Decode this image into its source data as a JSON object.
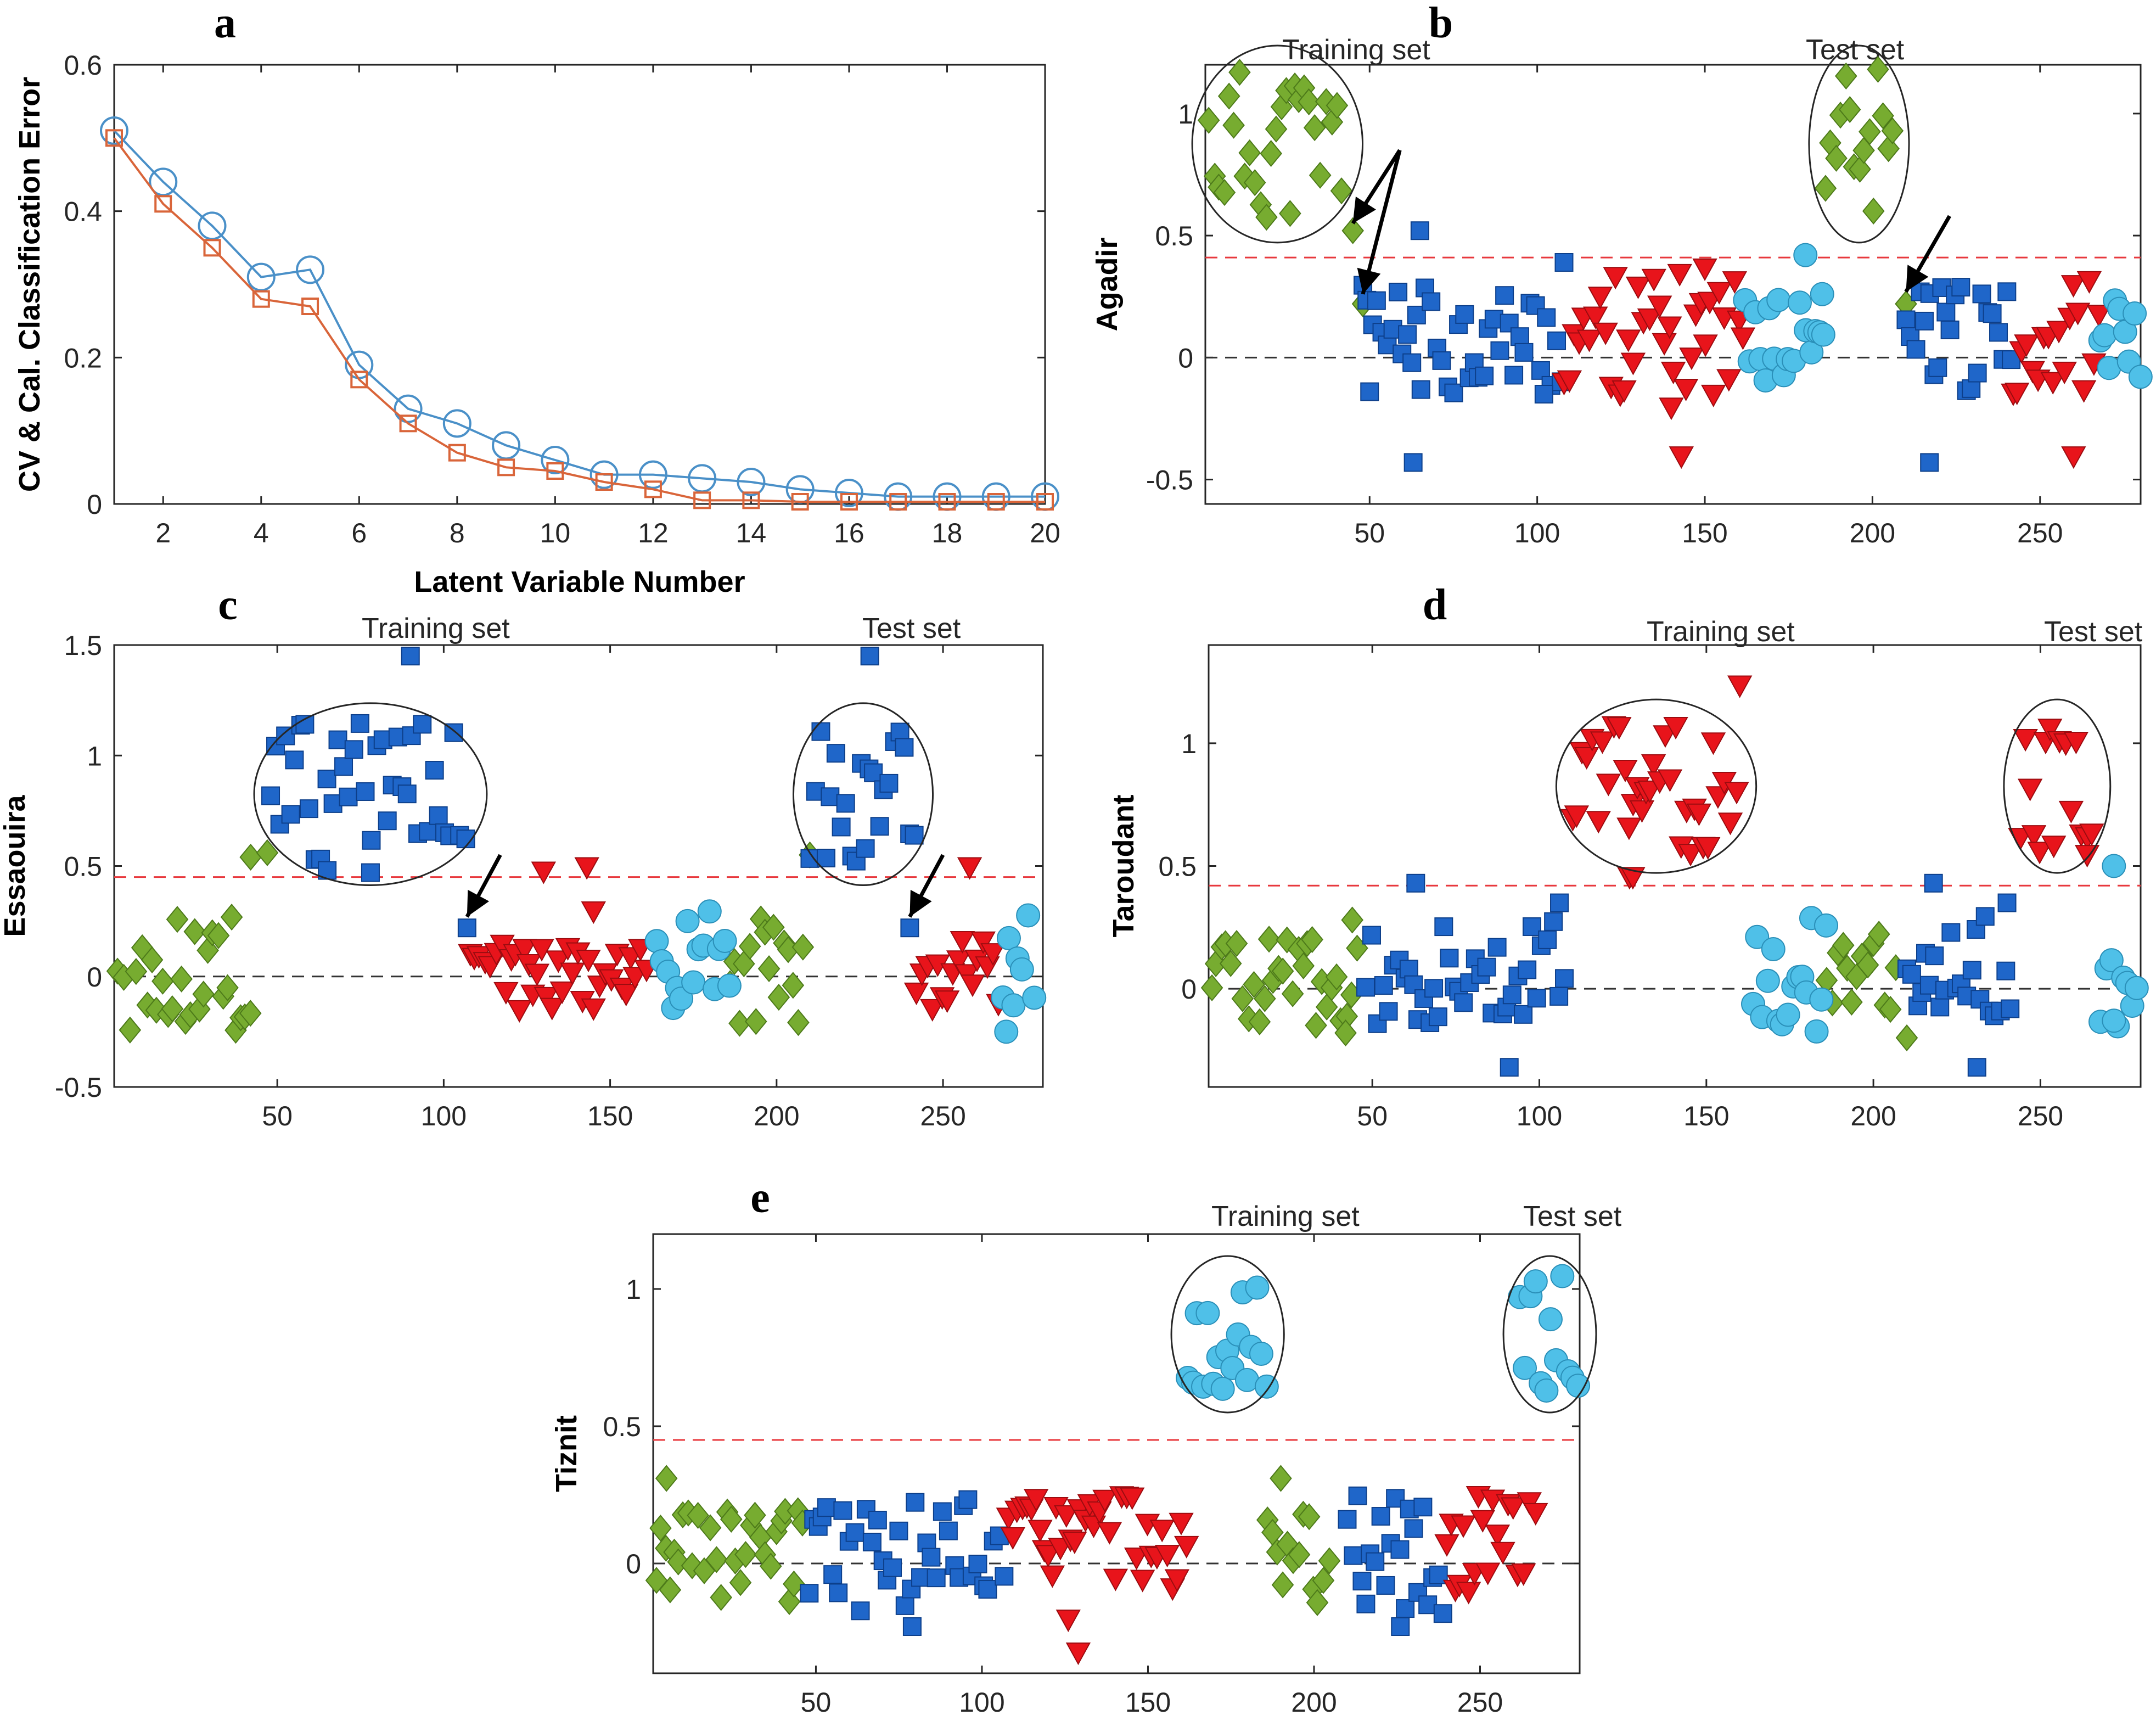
{
  "colors": {
    "agadir": "#77AC30",
    "essaouira": "#1F66C9",
    "taroudant": "#E8141B",
    "tiznit": "#4FC0E8",
    "cv": "#4A90C8",
    "cal": "#D9653A",
    "threshold": "#E8383D",
    "zero": "#333333"
  },
  "chart_data": [
    {
      "id": "a",
      "type": "line",
      "panel_letter": "a",
      "xlabel": "Latent Variable Number",
      "ylabel": "CV & Cal. Classification Error",
      "xlim": [
        1,
        20
      ],
      "ylim": [
        0,
        0.6
      ],
      "xticks": [
        2,
        4,
        6,
        8,
        10,
        12,
        14,
        16,
        18,
        20
      ],
      "xtick_labels": [
        "2",
        "4",
        "6",
        "8",
        "10",
        "12",
        "14",
        "16",
        "18",
        "20"
      ],
      "yticks": [
        0,
        0.2,
        0.4,
        0.6
      ],
      "ytick_labels": [
        "0",
        "0.2",
        "0.4",
        "0.6"
      ],
      "x": [
        1,
        2,
        3,
        4,
        5,
        6,
        7,
        8,
        9,
        10,
        11,
        12,
        13,
        14,
        15,
        16,
        17,
        18,
        19,
        20
      ],
      "series": [
        {
          "name": "CV",
          "color_key": "cv",
          "marker": "circle",
          "values": [
            0.51,
            0.44,
            0.38,
            0.31,
            0.32,
            0.19,
            0.13,
            0.11,
            0.08,
            0.06,
            0.04,
            0.04,
            0.035,
            0.03,
            0.02,
            0.015,
            0.01,
            0.01,
            0.01,
            0.01
          ]
        },
        {
          "name": "Cal",
          "color_key": "cal",
          "marker": "square",
          "values": [
            0.5,
            0.41,
            0.35,
            0.28,
            0.27,
            0.17,
            0.11,
            0.07,
            0.05,
            0.045,
            0.03,
            0.02,
            0.005,
            0.005,
            0.003,
            0.003,
            0.003,
            0.003,
            0.003,
            0.003
          ]
        }
      ]
    },
    {
      "id": "b",
      "type": "scatter",
      "panel_letter": "b",
      "ylabel": "Agadir",
      "xlim": [
        1,
        280
      ],
      "ylim": [
        -0.6,
        1.2
      ],
      "xticks": [
        50,
        100,
        150,
        200,
        250
      ],
      "xtick_labels": [
        "50",
        "100",
        "150",
        "200",
        "250"
      ],
      "yticks": [
        -0.5,
        0,
        0.5,
        1
      ],
      "ytick_labels": [
        "-0.5",
        "0",
        "0.5",
        "1"
      ],
      "threshold": 0.41,
      "annotations": [
        "Training set",
        "Test set"
      ],
      "groups": [
        {
          "name": "Agadir",
          "color_key": "agadir",
          "marker": "diamond",
          "ranges": [
            [
              2,
              43
            ],
            [
              186,
              206
            ]
          ],
          "spread": [
            0.55,
            1.2
          ],
          "extras": [
            [
              45,
              0.52
            ],
            [
              48,
              0.22
            ],
            [
              210,
              0.22
            ]
          ]
        },
        {
          "name": "Essaouira",
          "color_key": "essaouira",
          "marker": "square",
          "ranges": [
            [
              48,
              108
            ],
            [
              210,
              242
            ]
          ],
          "spread": [
            -0.15,
            0.3
          ],
          "extras": [
            [
              50,
              -0.14
            ],
            [
              63,
              -0.43
            ],
            [
              65,
              0.52
            ],
            [
              217,
              -0.43
            ],
            [
              102,
              -0.15
            ],
            [
              108,
              0.39
            ]
          ]
        },
        {
          "name": "Taroudant",
          "color_key": "taroudant",
          "marker": "triangle",
          "ranges": [
            [
              108,
              162
            ],
            [
              242,
              268
            ]
          ],
          "spread": [
            -0.15,
            0.35
          ],
          "extras": [
            [
              143,
              -0.4
            ],
            [
              140,
              -0.2
            ],
            [
              150,
              0.37
            ],
            [
              260,
              -0.4
            ]
          ]
        },
        {
          "name": "Tiznit",
          "color_key": "tiznit",
          "marker": "circle",
          "ranges": [
            [
              162,
              186
            ],
            [
              268,
              280
            ]
          ],
          "spread": [
            -0.12,
            0.25
          ],
          "extras": [
            [
              180,
              0.42
            ],
            [
              185,
              0.26
            ]
          ]
        }
      ]
    },
    {
      "id": "c",
      "type": "scatter",
      "panel_letter": "c",
      "ylabel": "Essaouira",
      "xlim": [
        1,
        280
      ],
      "ylim": [
        -0.5,
        1.5
      ],
      "xticks": [
        50,
        100,
        150,
        200,
        250
      ],
      "xtick_labels": [
        "50",
        "100",
        "150",
        "200",
        "250"
      ],
      "yticks": [
        -0.5,
        0,
        0.5,
        1,
        1.5
      ],
      "ytick_labels": [
        "-0.5",
        "0",
        "0.5",
        "1",
        "1.5"
      ],
      "threshold": 0.45,
      "annotations": [
        "Training set",
        "Test set"
      ],
      "groups": [
        {
          "name": "Agadir",
          "color_key": "agadir",
          "marker": "diamond",
          "ranges": [
            [
              2,
              43
            ],
            [
              186,
              208
            ]
          ],
          "spread": [
            -0.25,
            0.28
          ],
          "extras": [
            [
              42,
              0.54
            ],
            [
              47,
              0.56
            ],
            [
              210,
              0.55
            ]
          ]
        },
        {
          "name": "Essaouira",
          "color_key": "essaouira",
          "marker": "square",
          "ranges": [
            [
              48,
              108
            ],
            [
              210,
              242
            ]
          ],
          "spread": [
            0.5,
            1.15
          ],
          "extras": [
            [
              90,
              1.45
            ],
            [
              228,
              1.45
            ],
            [
              107,
              0.22
            ],
            [
              240,
              0.22
            ],
            [
              65,
              0.48
            ],
            [
              78,
              0.47
            ]
          ]
        },
        {
          "name": "Taroudant",
          "color_key": "taroudant",
          "marker": "triangle",
          "ranges": [
            [
              108,
              162
            ],
            [
              242,
              268
            ]
          ],
          "spread": [
            -0.15,
            0.2
          ],
          "extras": [
            [
              130,
              0.48
            ],
            [
              143,
              0.5
            ],
            [
              258,
              0.5
            ],
            [
              145,
              0.3
            ]
          ]
        },
        {
          "name": "Tiznit",
          "color_key": "tiznit",
          "marker": "circle",
          "ranges": [
            [
              164,
              186
            ],
            [
              268,
              278
            ]
          ],
          "spread": [
            -0.15,
            0.3
          ],
          "extras": [
            [
              269,
              -0.25
            ]
          ]
        }
      ]
    },
    {
      "id": "d",
      "type": "scatter",
      "panel_letter": "d",
      "ylabel": "Taroudant",
      "xlim": [
        1,
        280
      ],
      "ylim": [
        -0.4,
        1.4
      ],
      "xticks": [
        50,
        100,
        150,
        200,
        250
      ],
      "xtick_labels": [
        "50",
        "100",
        "150",
        "200",
        "250"
      ],
      "yticks": [
        0,
        0.5,
        1
      ],
      "ytick_labels": [
        "0",
        "0.5",
        "1"
      ],
      "threshold": 0.42,
      "annotations": [
        "Training set",
        "Test set"
      ],
      "groups": [
        {
          "name": "Agadir",
          "color_key": "agadir",
          "marker": "diamond",
          "ranges": [
            [
              2,
              46
            ],
            [
              186,
              208
            ]
          ],
          "spread": [
            -0.15,
            0.25
          ],
          "extras": [
            [
              44,
              0.28
            ],
            [
              42,
              -0.18
            ],
            [
              210,
              -0.2
            ]
          ]
        },
        {
          "name": "Essaouira",
          "color_key": "essaouira",
          "marker": "square",
          "ranges": [
            [
              48,
              108
            ],
            [
              210,
              242
            ]
          ],
          "spread": [
            -0.15,
            0.3
          ],
          "extras": [
            [
              63,
              0.43
            ],
            [
              91,
              -0.32
            ],
            [
              106,
              0.35
            ],
            [
              218,
              0.43
            ],
            [
              231,
              -0.32
            ],
            [
              240,
              0.35
            ]
          ]
        },
        {
          "name": "Taroudant",
          "color_key": "taroudant",
          "marker": "triangle",
          "ranges": [
            [
              110,
              160
            ],
            [
              244,
              266
            ]
          ],
          "spread": [
            0.55,
            1.1
          ],
          "extras": [
            [
              160,
              1.24
            ],
            [
              127,
              0.46
            ],
            [
              128,
              0.46
            ],
            [
              264,
              0.55
            ]
          ]
        },
        {
          "name": "Tiznit",
          "color_key": "tiznit",
          "marker": "circle",
          "ranges": [
            [
              164,
              186
            ],
            [
              268,
              280
            ]
          ],
          "spread": [
            -0.18,
            0.3
          ],
          "extras": [
            [
              272,
              0.5
            ],
            [
              272,
              -0.13
            ]
          ]
        }
      ]
    },
    {
      "id": "e",
      "type": "scatter",
      "panel_letter": "e",
      "ylabel": "Tiznit",
      "xlim": [
        1,
        280
      ],
      "ylim": [
        -0.4,
        1.2
      ],
      "xticks": [
        50,
        100,
        150,
        200,
        250
      ],
      "xtick_labels": [
        "50",
        "100",
        "150",
        "200",
        "250"
      ],
      "yticks": [
        0,
        0.5,
        1
      ],
      "ytick_labels": [
        "0",
        "0.5",
        "1"
      ],
      "threshold": 0.45,
      "annotations": [
        "Training set",
        "Test set"
      ],
      "groups": [
        {
          "name": "Agadir",
          "color_key": "agadir",
          "marker": "diamond",
          "ranges": [
            [
              2,
              46
            ],
            [
              186,
              206
            ]
          ],
          "spread": [
            -0.15,
            0.2
          ],
          "extras": [
            [
              5,
              0.31
            ],
            [
              190,
              0.31
            ]
          ]
        },
        {
          "name": "Essaouira",
          "color_key": "essaouira",
          "marker": "square",
          "ranges": [
            [
              48,
              108
            ],
            [
              210,
              240
            ]
          ],
          "spread": [
            -0.2,
            0.25
          ],
          "extras": [
            [
              79,
              -0.23
            ],
            [
              226,
              -0.23
            ]
          ]
        },
        {
          "name": "Taroudant",
          "color_key": "taroudant",
          "marker": "triangle",
          "ranges": [
            [
              108,
              162
            ],
            [
              240,
              268
            ]
          ],
          "spread": [
            -0.1,
            0.25
          ],
          "extras": [
            [
              129,
              -0.32
            ],
            [
              126,
              -0.2
            ]
          ]
        },
        {
          "name": "Tiznit",
          "color_key": "tiznit",
          "marker": "circle",
          "ranges": [
            [
              162,
              186
            ],
            [
              262,
              280
            ]
          ],
          "spread": [
            0.62,
            1.05
          ],
          "extras": []
        }
      ]
    }
  ]
}
